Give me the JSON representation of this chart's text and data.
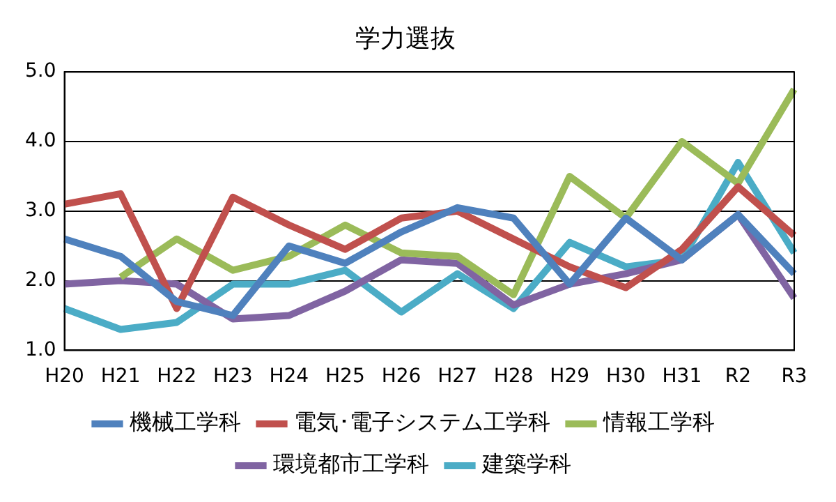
{
  "chart_data": {
    "type": "line",
    "title": "学力選抜",
    "categories": [
      "H20",
      "H21",
      "H22",
      "H23",
      "H24",
      "H25",
      "H26",
      "H27",
      "H28",
      "H29",
      "H30",
      "H31",
      "R2",
      "R3"
    ],
    "series": [
      {
        "name": "機械工学科",
        "color": "#4f81bd",
        "values": [
          2.6,
          2.35,
          1.7,
          1.5,
          2.5,
          2.25,
          2.7,
          3.05,
          2.9,
          1.95,
          2.9,
          2.3,
          2.95,
          2.1
        ]
      },
      {
        "name": "電気･電子システム工学科",
        "color": "#c0504d",
        "values": [
          3.1,
          3.25,
          1.6,
          3.2,
          2.8,
          2.45,
          2.9,
          3.0,
          2.6,
          2.2,
          1.9,
          2.45,
          3.35,
          2.65
        ]
      },
      {
        "name": "情報工学科",
        "color": "#9bbb59",
        "values": [
          null,
          2.05,
          2.6,
          2.15,
          2.35,
          2.8,
          2.4,
          2.35,
          1.8,
          3.5,
          2.9,
          4.0,
          3.4,
          4.75
        ]
      },
      {
        "name": "環境都市工学科",
        "color": "#8064a2",
        "values": [
          1.95,
          2.0,
          1.95,
          1.45,
          1.5,
          1.85,
          2.3,
          2.25,
          1.65,
          1.95,
          2.1,
          2.3,
          2.95,
          1.75
        ]
      },
      {
        "name": "建築学科",
        "color": "#4bacc6",
        "values": [
          1.6,
          1.3,
          1.4,
          1.95,
          1.95,
          2.15,
          1.55,
          2.1,
          1.6,
          2.55,
          2.2,
          2.3,
          3.7,
          2.4
        ]
      }
    ],
    "ylim": [
      1,
      5
    ],
    "yticks": [
      {
        "value": 1,
        "label": "1.0"
      },
      {
        "value": 2,
        "label": "2.0"
      },
      {
        "value": 3,
        "label": "3.0"
      },
      {
        "value": 4,
        "label": "4.0"
      },
      {
        "value": 5,
        "label": "5.0"
      }
    ],
    "grid": "y",
    "legend": "bottom",
    "marker": "none",
    "line_style": "solid"
  }
}
